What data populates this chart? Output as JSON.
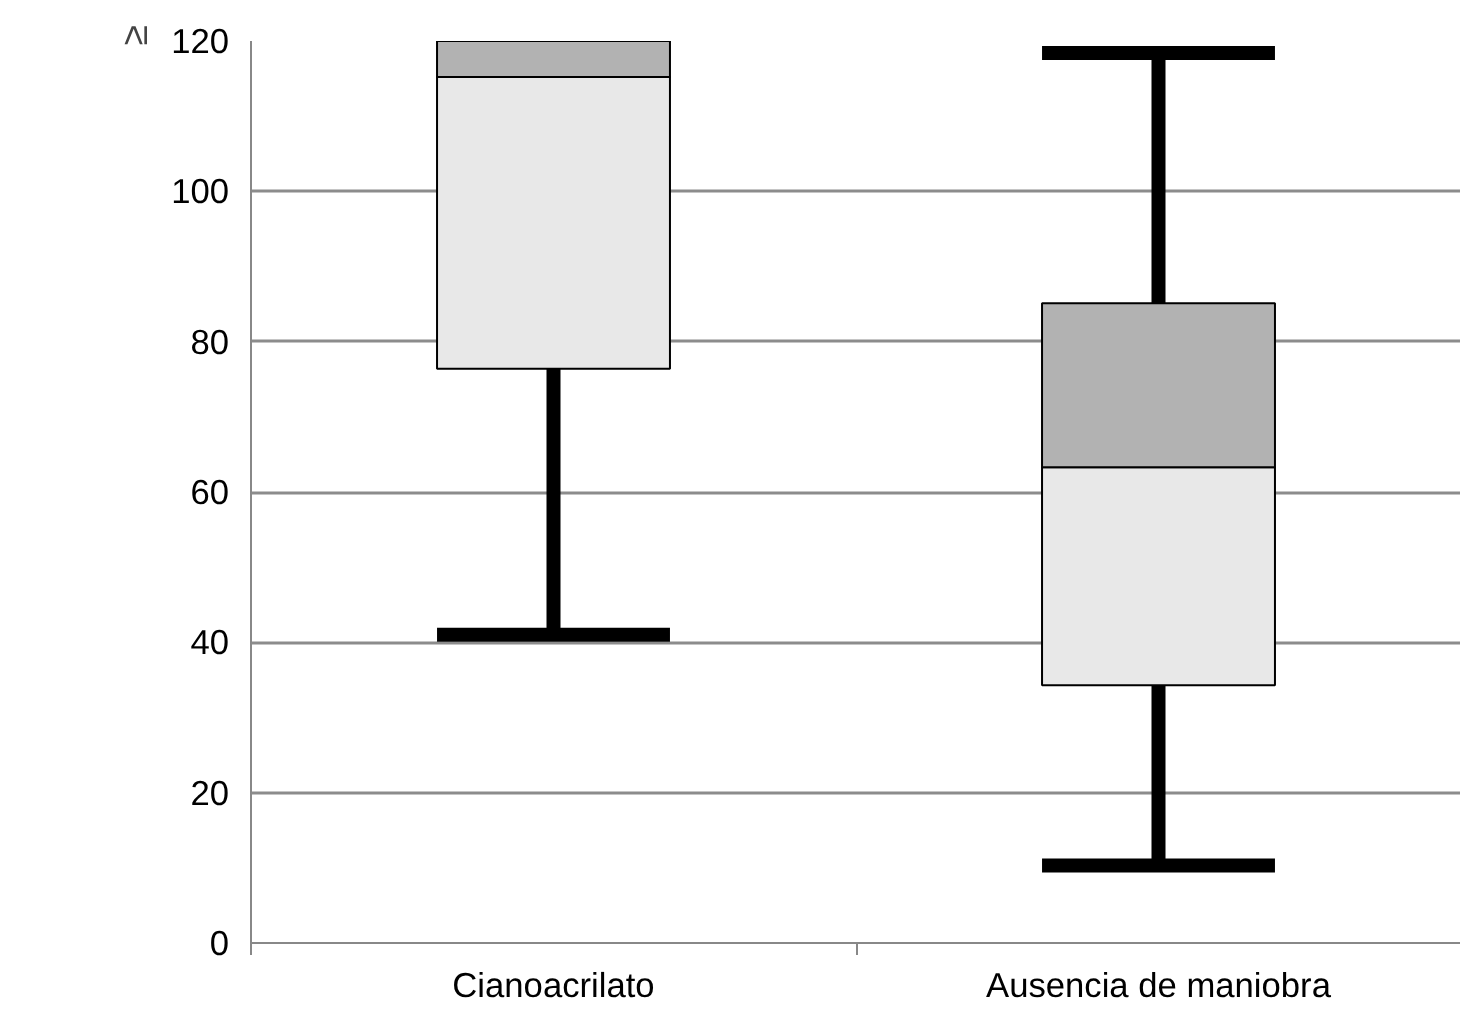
{
  "chart_data": {
    "type": "box",
    "ylabel": "≥",
    "categories": [
      "Cianoacrilato",
      "Ausencia de maniobra"
    ],
    "boxes": [
      {
        "low": 41,
        "q1": 76.4,
        "median": 115.2,
        "q3": 120,
        "high": null
      },
      {
        "low": 10.3,
        "q1": 34.3,
        "median": 63.3,
        "q3": 85.1,
        "high": 118.4
      }
    ],
    "ylim": [
      0,
      120
    ],
    "yticks": [
      0,
      20,
      40,
      60,
      80,
      100,
      120
    ],
    "grid": "y"
  }
}
